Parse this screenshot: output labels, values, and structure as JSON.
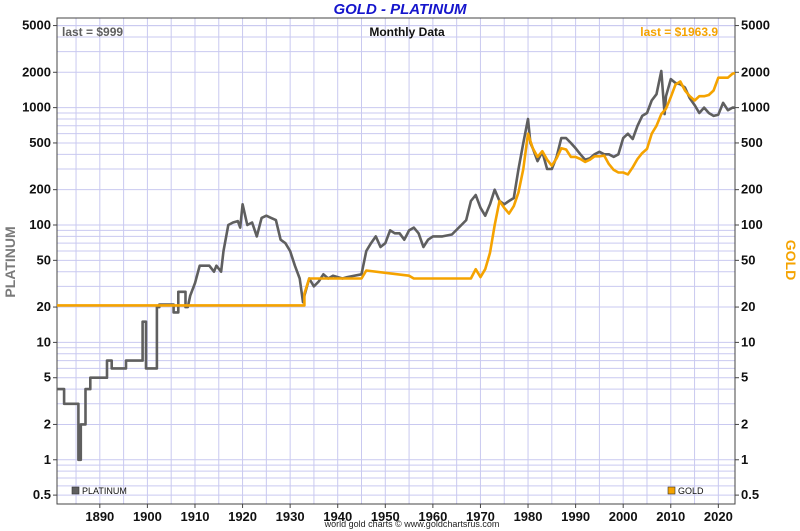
{
  "chart_data": {
    "type": "line",
    "title": "GOLD - PLATINUM",
    "subtitle": "Monthly Data",
    "credit": "world gold charts © www.goldchartsrus.com",
    "last_left": "last = $999",
    "last_right": "last = $1963.9",
    "ylabel_left": "PLATINUM",
    "ylabel_right": "GOLD",
    "y_scale": "log",
    "ylim": [
      0.42,
      5800
    ],
    "xlim": [
      1881,
      2023.5
    ],
    "grid": true,
    "legend_placement": "bottom",
    "x_ticks": [
      "1890",
      "1900",
      "1910",
      "1920",
      "1930",
      "1940",
      "1950",
      "1960",
      "1970",
      "1980",
      "1990",
      "2000",
      "2010",
      "2020"
    ],
    "y_ticks": [
      "5000",
      "2000",
      "1000",
      "500",
      "200",
      "100",
      "50",
      "20",
      "10",
      "5",
      "2",
      "1",
      "0.5"
    ],
    "colors": {
      "title": "#1515cc",
      "platinum": "#5f5f5f",
      "gold": "#f5a300",
      "grid": "#c9c9f0",
      "ylabel_left": "#7a7a7a",
      "ylabel_right": "#f5a300"
    },
    "series": [
      {
        "name": "PLATINUM",
        "color": "#5f5f5f",
        "x": [
          1881,
          1882.5,
          1882.5,
          1885.5,
          1885.5,
          1886,
          1886,
          1887,
          1887,
          1888,
          1888,
          1891.5,
          1891.5,
          1892.5,
          1892.5,
          1894.5,
          1894.5,
          1895.5,
          1895.5,
          1899,
          1899,
          1899.7,
          1899.7,
          1902,
          1902,
          1902.5,
          1902.5,
          1905.5,
          1905.5,
          1906.5,
          1906.5,
          1908,
          1908,
          1908.5,
          1909,
          1910,
          1911,
          1913,
          1914,
          1914.5,
          1915.5,
          1916,
          1917,
          1918,
          1919,
          1919.5,
          1920,
          1921,
          1922,
          1923,
          1924,
          1925,
          1926,
          1927,
          1928,
          1929,
          1930,
          1931,
          1932,
          1932.7,
          1933,
          1934,
          1935,
          1936,
          1937,
          1938,
          1939,
          1940,
          1941,
          1942,
          1945,
          1946,
          1947,
          1948,
          1949,
          1950,
          1951,
          1952,
          1953,
          1954,
          1955,
          1956,
          1957,
          1958,
          1959,
          1960,
          1962,
          1964,
          1966,
          1967,
          1968,
          1969,
          1970,
          1971,
          1972,
          1973,
          1974,
          1975,
          1976,
          1977,
          1978,
          1979,
          1980,
          1980.5,
          1981,
          1982,
          1983,
          1984,
          1985,
          1986,
          1987,
          1988,
          1989,
          1990,
          1991,
          1992,
          1993,
          1994,
          1995,
          1996,
          1997,
          1998,
          1999,
          2000,
          2001,
          2002,
          2003,
          2004,
          2005,
          2006,
          2007,
          2008,
          2008.7,
          2009,
          2010,
          2011,
          2012,
          2013,
          2014,
          2015,
          2016,
          2017,
          2018,
          2019,
          2020,
          2021,
          2022,
          2023,
          2023.5
        ],
        "y": [
          4,
          4,
          3,
          3,
          1,
          1,
          2,
          2,
          4,
          4,
          5,
          5,
          7,
          7,
          6,
          6,
          6,
          6,
          7,
          7,
          15,
          15,
          6,
          6,
          20,
          20,
          21,
          21,
          18,
          18,
          27,
          27,
          20,
          20,
          25,
          32,
          45,
          45,
          40,
          45,
          40,
          60,
          100,
          105,
          108,
          95,
          150,
          100,
          105,
          80,
          115,
          120,
          115,
          110,
          75,
          70,
          60,
          45,
          35,
          22,
          25,
          35,
          30,
          33,
          38,
          35,
          37,
          36,
          35,
          36,
          38,
          60,
          70,
          80,
          65,
          70,
          90,
          85,
          85,
          75,
          90,
          95,
          85,
          65,
          75,
          80,
          80,
          83,
          100,
          110,
          160,
          180,
          140,
          120,
          150,
          200,
          160,
          150,
          160,
          170,
          300,
          500,
          800,
          500,
          450,
          350,
          420,
          300,
          300,
          380,
          550,
          550,
          500,
          450,
          400,
          360,
          370,
          400,
          420,
          400,
          400,
          380,
          400,
          550,
          600,
          540,
          700,
          850,
          900,
          1150,
          1300,
          2050,
          880,
          1250,
          1750,
          1620,
          1580,
          1480,
          1200,
          1050,
          900,
          1000,
          900,
          850,
          870,
          1100,
          950,
          1000,
          999
        ]
      },
      {
        "name": "GOLD",
        "color": "#f5a300",
        "x": [
          1881,
          1933,
          1933,
          1934,
          1945,
          1946,
          1955,
          1956,
          1968,
          1969,
          1970,
          1971,
          1972,
          1973,
          1974,
          1975,
          1976,
          1977,
          1978,
          1979,
          1980,
          1981,
          1982,
          1983,
          1984,
          1985,
          1986,
          1987,
          1988,
          1989,
          1990,
          1991,
          1992,
          1993,
          1994,
          1995,
          1996,
          1997,
          1998,
          1999,
          2000,
          2001,
          2002,
          2003,
          2004,
          2005,
          2006,
          2007,
          2008,
          2009,
          2010,
          2011,
          2012,
          2013,
          2014,
          2015,
          2016,
          2017,
          2018,
          2019,
          2020,
          2021,
          2022,
          2023,
          2023.5
        ],
        "y": [
          20.67,
          20.67,
          26,
          35,
          35,
          41,
          37,
          35,
          35,
          42,
          36,
          42,
          58,
          100,
          160,
          140,
          125,
          145,
          190,
          300,
          600,
          450,
          380,
          425,
          360,
          320,
          370,
          450,
          440,
          380,
          380,
          365,
          345,
          360,
          385,
          385,
          390,
          330,
          295,
          280,
          280,
          270,
          310,
          365,
          410,
          445,
          600,
          700,
          880,
          980,
          1230,
          1570,
          1670,
          1400,
          1250,
          1150,
          1250,
          1250,
          1280,
          1400,
          1800,
          1800,
          1800,
          1950,
          1963.9
        ]
      }
    ]
  }
}
